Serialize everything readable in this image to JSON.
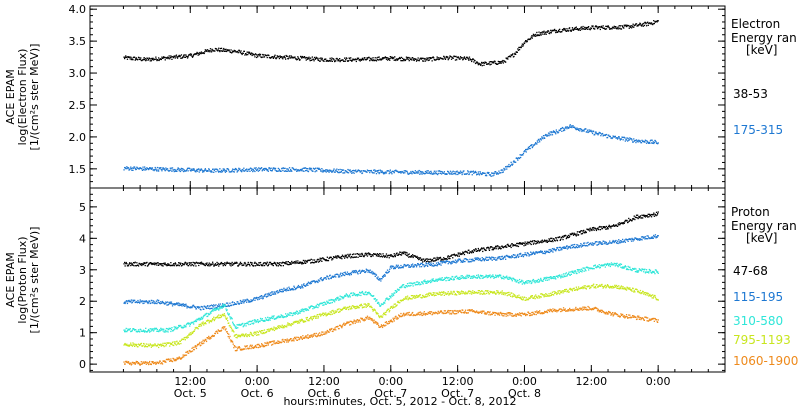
{
  "chart_data": [
    {
      "type": "scatter",
      "ylabel_lines": [
        "ACE EPAM",
        "log(Electron Flux)",
        "[1/(cm²s ster MeV)]"
      ],
      "ylim": [
        1.2,
        4.05
      ],
      "yticks": [
        1.5,
        2.0,
        2.5,
        3.0,
        3.5,
        4.0
      ],
      "ytick_labels": [
        "1.5",
        "2.0",
        "2.5",
        "3.0",
        "3.5",
        "4.0"
      ],
      "legend_title_lines": [
        "Electron",
        "Energy ran",
        "[keV]"
      ],
      "series": [
        {
          "name": "38-53",
          "color": "#000000",
          "points": [
            [
              0,
              3.25
            ],
            [
              4,
              3.22
            ],
            [
              8,
              3.25
            ],
            [
              12,
              3.28
            ],
            [
              16,
              3.38
            ],
            [
              20,
              3.35
            ],
            [
              24,
              3.28
            ],
            [
              30,
              3.25
            ],
            [
              36,
              3.22
            ],
            [
              42,
              3.22
            ],
            [
              48,
              3.24
            ],
            [
              54,
              3.22
            ],
            [
              58,
              3.25
            ],
            [
              62,
              3.23
            ],
            [
              64,
              3.15
            ],
            [
              68,
              3.18
            ],
            [
              70,
              3.3
            ],
            [
              72,
              3.5
            ],
            [
              74,
              3.62
            ],
            [
              78,
              3.68
            ],
            [
              84,
              3.72
            ],
            [
              90,
              3.73
            ],
            [
              94,
              3.78
            ],
            [
              96,
              3.82
            ]
          ]
        },
        {
          "name": "175-315",
          "color": "#1e78d2",
          "points": [
            [
              0,
              1.52
            ],
            [
              8,
              1.5
            ],
            [
              16,
              1.48
            ],
            [
              24,
              1.5
            ],
            [
              32,
              1.5
            ],
            [
              40,
              1.47
            ],
            [
              48,
              1.46
            ],
            [
              56,
              1.45
            ],
            [
              62,
              1.45
            ],
            [
              66,
              1.42
            ],
            [
              68,
              1.48
            ],
            [
              70,
              1.62
            ],
            [
              72,
              1.78
            ],
            [
              76,
              2.05
            ],
            [
              78,
              2.1
            ],
            [
              80,
              2.18
            ],
            [
              84,
              2.08
            ],
            [
              88,
              2.0
            ],
            [
              92,
              1.95
            ],
            [
              96,
              1.92
            ]
          ]
        }
      ]
    },
    {
      "type": "scatter",
      "ylabel_lines": [
        "ACE EPAM",
        "log(Proton Flux)",
        "[1/(cm²s ster MeV)]"
      ],
      "ylim": [
        -0.25,
        5.6
      ],
      "yticks": [
        0,
        1,
        2,
        3,
        4,
        5
      ],
      "ytick_labels": [
        "0",
        "1",
        "2",
        "3",
        "4",
        "5"
      ],
      "legend_title_lines": [
        "Proton",
        "Energy ran",
        "[keV]"
      ],
      "series": [
        {
          "name": "47-68",
          "color": "#000000",
          "points": [
            [
              0,
              3.2
            ],
            [
              10,
              3.2
            ],
            [
              20,
              3.2
            ],
            [
              28,
              3.2
            ],
            [
              34,
              3.3
            ],
            [
              40,
              3.45
            ],
            [
              44,
              3.5
            ],
            [
              48,
              3.45
            ],
            [
              50,
              3.55
            ],
            [
              54,
              3.3
            ],
            [
              58,
              3.4
            ],
            [
              62,
              3.6
            ],
            [
              66,
              3.7
            ],
            [
              70,
              3.8
            ],
            [
              74,
              3.9
            ],
            [
              78,
              4.0
            ],
            [
              84,
              4.3
            ],
            [
              88,
              4.4
            ],
            [
              92,
              4.7
            ],
            [
              96,
              4.8
            ]
          ]
        },
        {
          "name": "115-195",
          "color": "#1e78d2",
          "points": [
            [
              0,
              2.0
            ],
            [
              6,
              2.0
            ],
            [
              10,
              1.9
            ],
            [
              14,
              1.8
            ],
            [
              16,
              1.85
            ],
            [
              20,
              1.95
            ],
            [
              24,
              2.1
            ],
            [
              28,
              2.35
            ],
            [
              32,
              2.5
            ],
            [
              36,
              2.75
            ],
            [
              40,
              2.9
            ],
            [
              44,
              3.0
            ],
            [
              46,
              2.7
            ],
            [
              48,
              3.1
            ],
            [
              52,
              3.15
            ],
            [
              56,
              3.2
            ],
            [
              60,
              3.3
            ],
            [
              64,
              3.35
            ],
            [
              68,
              3.4
            ],
            [
              72,
              3.5
            ],
            [
              76,
              3.6
            ],
            [
              80,
              3.75
            ],
            [
              84,
              3.85
            ],
            [
              88,
              3.9
            ],
            [
              92,
              4.0
            ],
            [
              96,
              4.1
            ]
          ]
        },
        {
          "name": "310-580",
          "color": "#2ee6d8",
          "points": [
            [
              0,
              1.1
            ],
            [
              8,
              1.1
            ],
            [
              12,
              1.3
            ],
            [
              16,
              1.7
            ],
            [
              18,
              1.9
            ],
            [
              20,
              1.2
            ],
            [
              24,
              1.4
            ],
            [
              30,
              1.6
            ],
            [
              36,
              1.95
            ],
            [
              40,
              2.2
            ],
            [
              44,
              2.3
            ],
            [
              46,
              1.9
            ],
            [
              50,
              2.5
            ],
            [
              56,
              2.7
            ],
            [
              62,
              2.8
            ],
            [
              68,
              2.8
            ],
            [
              72,
              2.6
            ],
            [
              78,
              2.8
            ],
            [
              84,
              3.1
            ],
            [
              88,
              3.2
            ],
            [
              92,
              3.0
            ],
            [
              96,
              2.95
            ]
          ]
        },
        {
          "name": "795-1193",
          "color": "#c8e61e",
          "points": [
            [
              0,
              0.65
            ],
            [
              6,
              0.6
            ],
            [
              10,
              0.7
            ],
            [
              14,
              1.3
            ],
            [
              18,
              1.6
            ],
            [
              20,
              0.9
            ],
            [
              24,
              1.0
            ],
            [
              30,
              1.3
            ],
            [
              36,
              1.6
            ],
            [
              40,
              1.8
            ],
            [
              44,
              1.9
            ],
            [
              46,
              1.5
            ],
            [
              50,
              2.1
            ],
            [
              56,
              2.25
            ],
            [
              62,
              2.3
            ],
            [
              68,
              2.3
            ],
            [
              72,
              2.1
            ],
            [
              78,
              2.3
            ],
            [
              84,
              2.5
            ],
            [
              88,
              2.5
            ],
            [
              92,
              2.35
            ],
            [
              96,
              2.1
            ]
          ]
        },
        {
          "name": "1060-1900",
          "color": "#ee8a1c",
          "points": [
            [
              0,
              0.05
            ],
            [
              6,
              0.05
            ],
            [
              10,
              0.2
            ],
            [
              14,
              0.7
            ],
            [
              18,
              1.2
            ],
            [
              20,
              0.5
            ],
            [
              24,
              0.6
            ],
            [
              30,
              0.8
            ],
            [
              36,
              1.0
            ],
            [
              40,
              1.3
            ],
            [
              44,
              1.5
            ],
            [
              46,
              1.2
            ],
            [
              50,
              1.6
            ],
            [
              56,
              1.65
            ],
            [
              62,
              1.7
            ],
            [
              68,
              1.6
            ],
            [
              72,
              1.6
            ],
            [
              78,
              1.75
            ],
            [
              84,
              1.8
            ],
            [
              88,
              1.6
            ],
            [
              92,
              1.5
            ],
            [
              96,
              1.4
            ]
          ]
        }
      ]
    }
  ],
  "x_axis": {
    "range_hours": [
      -6,
      108
    ],
    "ticks_hours": [
      12,
      24,
      36,
      48,
      60,
      72,
      84
    ],
    "tick_time_labels": [
      "12:00",
      "0:00",
      "12:00",
      "0:00",
      "12:00",
      "0:00",
      "12:00",
      "0:00"
    ],
    "tick_time_hours": [
      12,
      24,
      36,
      48,
      60,
      72,
      84,
      96
    ],
    "tick_date_labels": [
      "Oct. 5",
      "Oct. 6",
      "Oct. 6",
      "Oct. 7",
      "Oct. 7",
      "Oct. 8"
    ],
    "tick_date_hours": [
      12,
      24,
      36,
      48,
      60,
      72
    ],
    "xlabel": "hours:minutes, Oct.  5, 2012 - Oct.  8, 2012"
  }
}
